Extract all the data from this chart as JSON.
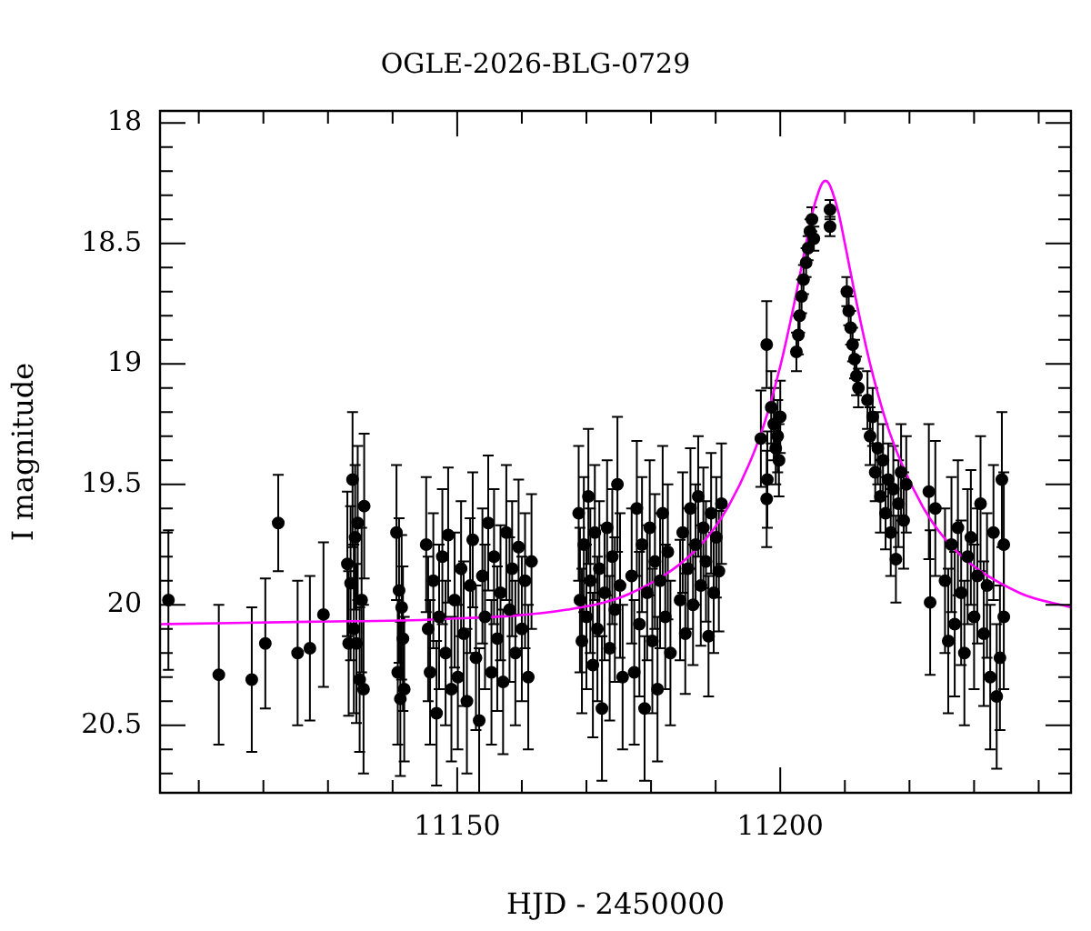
{
  "chart_data": {
    "type": "scatter",
    "title": "OGLE-2026-BLG-0729",
    "xlabel": "HJD - 2450000",
    "ylabel": "I magnitude",
    "xlim": [
      11104,
      11245
    ],
    "ylim": [
      20.78,
      17.95
    ],
    "xticks": [
      {
        "value": 11110,
        "label": null
      },
      {
        "value": 11120,
        "label": null
      },
      {
        "value": 11130,
        "label": null
      },
      {
        "value": 11140,
        "label": null
      },
      11150,
      {
        "value": 11160,
        "label": null
      },
      {
        "value": 11170,
        "label": null
      },
      {
        "value": 11180,
        "label": null
      },
      {
        "value": 11190,
        "label": null
      },
      11200,
      {
        "value": 11210,
        "label": null
      },
      {
        "value": 11220,
        "label": null
      },
      {
        "value": 11230,
        "label": null
      },
      {
        "value": 11240,
        "label": null
      }
    ],
    "yticks": [
      18,
      {
        "value": 18.1,
        "label": null
      },
      {
        "value": 18.2,
        "label": null
      },
      {
        "value": 18.3,
        "label": null
      },
      {
        "value": 18.4,
        "label": null
      },
      18.5,
      {
        "value": 18.6,
        "label": null
      },
      {
        "value": 18.7,
        "label": null
      },
      {
        "value": 18.8,
        "label": null
      },
      {
        "value": 18.9,
        "label": null
      },
      19,
      {
        "value": 19.1,
        "label": null
      },
      {
        "value": 19.2,
        "label": null
      },
      {
        "value": 19.3,
        "label": null
      },
      {
        "value": 19.4,
        "label": null
      },
      19.5,
      {
        "value": 19.6,
        "label": null
      },
      {
        "value": 19.7,
        "label": null
      },
      {
        "value": 19.8,
        "label": null
      },
      {
        "value": 19.9,
        "label": null
      },
      20,
      {
        "value": 20.1,
        "label": null
      },
      {
        "value": 20.2,
        "label": null
      },
      {
        "value": 20.3,
        "label": null
      },
      {
        "value": 20.4,
        "label": null
      },
      20.5,
      {
        "value": 20.6,
        "label": null
      },
      {
        "value": 20.7,
        "label": null
      }
    ],
    "grid": false,
    "legend": false,
    "series": [
      {
        "color": "#000000",
        "marker": "circle",
        "x": [
          11105.3,
          11113.1,
          11118.2,
          11120.3,
          11122.3,
          11125.3,
          11127.2,
          11129.3,
          11133.0,
          11133.2,
          11133.5,
          11133.8,
          11134.0,
          11134.2,
          11134.4,
          11134.6,
          11134.9,
          11135.2,
          11135.5,
          11135.6,
          11140.6,
          11140.8,
          11141.0,
          11141.2,
          11141.4,
          11141.6,
          11141.8,
          11145.2,
          11145.5,
          11145.8,
          11146.3,
          11146.8,
          11147.2,
          11147.7,
          11148.2,
          11148.6,
          11149.1,
          11149.6,
          11150.1,
          11150.6,
          11151.0,
          11151.5,
          11152.0,
          11152.4,
          11152.9,
          11153.4,
          11153.9,
          11154.3,
          11154.8,
          11155.3,
          11155.7,
          11156.2,
          11156.7,
          11157.1,
          11157.6,
          11158.1,
          11158.5,
          11159.0,
          11159.5,
          11160.0,
          11160.5,
          11161.0,
          11161.5,
          11168.8,
          11169.0,
          11169.3,
          11169.6,
          11170.0,
          11170.3,
          11170.6,
          11171.0,
          11171.3,
          11171.7,
          11172.0,
          11172.4,
          11172.8,
          11173.2,
          11173.6,
          11174.0,
          11174.4,
          11174.8,
          11175.2,
          11175.6,
          11177.0,
          11177.4,
          11177.8,
          11178.2,
          11178.6,
          11179.0,
          11179.4,
          11179.8,
          11180.2,
          11180.6,
          11181.0,
          11181.4,
          11181.8,
          11182.2,
          11182.6,
          11183.0,
          11184.5,
          11184.9,
          11185.3,
          11185.7,
          11186.1,
          11186.5,
          11186.9,
          11187.3,
          11187.7,
          11188.1,
          11188.5,
          11188.9,
          11189.3,
          11189.7,
          11190.1,
          11190.5,
          11190.9,
          11197.0,
          11197.9,
          11197.9,
          11198.0,
          11198.6,
          11199.0,
          11199.3,
          11199.6,
          11199.8,
          11200.0,
          11202.5,
          11202.8,
          11203.0,
          11203.3,
          11203.6,
          11204.0,
          11204.3,
          11204.6,
          11204.9,
          11205.2,
          11207.7,
          11207.7,
          11210.3,
          11210.6,
          11210.9,
          11211.2,
          11211.5,
          11211.8,
          11212.1,
          11213.5,
          11213.9,
          11214.3,
          11214.7,
          11215.1,
          11215.5,
          11215.9,
          11216.3,
          11216.7,
          11217.1,
          11217.5,
          11217.9,
          11218.3,
          11218.7,
          11219.1,
          11219.5,
          11223.0,
          11223.2,
          11224.0,
          11225.5,
          11226.0,
          11226.5,
          11227.0,
          11227.5,
          11228.0,
          11228.5,
          11229.0,
          11229.5,
          11230.0,
          11230.5,
          11231.0,
          11231.5,
          11232.0,
          11232.5,
          11233.0,
          11233.5,
          11234.0,
          11234.3,
          11234.6,
          11234.6
        ],
        "values": [
          19.98,
          20.29,
          20.31,
          20.16,
          19.66,
          20.2,
          20.18,
          20.04,
          19.83,
          20.16,
          19.91,
          19.48,
          20.1,
          19.72,
          20.16,
          19.66,
          20.31,
          19.98,
          20.35,
          19.59,
          19.7,
          20.28,
          19.94,
          20.39,
          20.01,
          20.14,
          20.35,
          19.75,
          20.1,
          20.28,
          19.9,
          20.45,
          20.05,
          19.8,
          20.2,
          19.71,
          20.35,
          19.98,
          20.3,
          19.85,
          20.12,
          20.4,
          19.92,
          19.73,
          20.22,
          20.48,
          19.88,
          20.05,
          19.66,
          20.28,
          19.8,
          20.14,
          19.95,
          20.32,
          19.7,
          20.02,
          19.85,
          20.2,
          19.76,
          20.1,
          19.9,
          20.3,
          19.82,
          19.62,
          19.98,
          20.15,
          19.75,
          20.05,
          19.55,
          19.9,
          20.25,
          19.7,
          20.1,
          19.85,
          20.43,
          19.95,
          19.68,
          20.18,
          19.8,
          20.02,
          19.5,
          19.92,
          20.3,
          19.88,
          20.28,
          19.6,
          20.08,
          19.75,
          20.43,
          19.95,
          19.68,
          20.15,
          19.82,
          20.35,
          19.9,
          19.62,
          20.05,
          19.78,
          20.2,
          19.98,
          19.7,
          20.12,
          19.85,
          19.6,
          20.0,
          19.75,
          19.55,
          19.92,
          19.68,
          19.82,
          20.13,
          19.62,
          19.95,
          19.72,
          19.86,
          19.58,
          19.31,
          18.92,
          19.56,
          19.48,
          19.18,
          19.25,
          19.35,
          19.3,
          19.4,
          19.22,
          18.95,
          18.88,
          18.8,
          18.72,
          18.65,
          18.58,
          18.52,
          18.45,
          18.4,
          18.48,
          18.36,
          18.43,
          18.7,
          18.78,
          18.85,
          18.92,
          18.98,
          19.05,
          19.1,
          19.15,
          19.3,
          19.22,
          19.45,
          19.35,
          19.55,
          19.4,
          19.62,
          19.48,
          19.7,
          19.52,
          19.81,
          19.58,
          19.45,
          19.65,
          19.5,
          19.53,
          19.99,
          19.6,
          19.9,
          20.15,
          19.75,
          20.08,
          19.68,
          19.95,
          20.2,
          19.8,
          19.72,
          20.05,
          19.88,
          19.58,
          20.12,
          19.92,
          20.3,
          19.7,
          20.38,
          20.22,
          19.48,
          19.75,
          20.05
        ],
        "errors": [
          0.29,
          0.29,
          0.3,
          0.27,
          0.2,
          0.3,
          0.3,
          0.3,
          0.3,
          0.3,
          0.32,
          0.28,
          0.35,
          0.3,
          0.33,
          0.32,
          0.3,
          0.3,
          0.35,
          0.3,
          0.28,
          0.3,
          0.3,
          0.32,
          0.3,
          0.3,
          0.3,
          0.28,
          0.3,
          0.3,
          0.28,
          0.3,
          0.3,
          0.28,
          0.3,
          0.28,
          0.3,
          0.28,
          0.3,
          0.28,
          0.3,
          0.3,
          0.28,
          0.28,
          0.3,
          0.3,
          0.28,
          0.3,
          0.28,
          0.3,
          0.28,
          0.3,
          0.28,
          0.3,
          0.28,
          0.3,
          0.28,
          0.3,
          0.28,
          0.3,
          0.28,
          0.3,
          0.28,
          0.28,
          0.3,
          0.3,
          0.28,
          0.3,
          0.28,
          0.3,
          0.3,
          0.28,
          0.3,
          0.28,
          0.3,
          0.28,
          0.28,
          0.3,
          0.28,
          0.3,
          0.28,
          0.3,
          0.3,
          0.28,
          0.3,
          0.28,
          0.3,
          0.28,
          0.3,
          0.28,
          0.28,
          0.3,
          0.28,
          0.3,
          0.28,
          0.28,
          0.3,
          0.28,
          0.3,
          0.25,
          0.25,
          0.25,
          0.25,
          0.25,
          0.25,
          0.25,
          0.25,
          0.25,
          0.25,
          0.25,
          0.25,
          0.25,
          0.25,
          0.25,
          0.25,
          0.25,
          0.2,
          0.18,
          0.2,
          0.2,
          0.15,
          0.15,
          0.15,
          0.15,
          0.15,
          0.15,
          0.08,
          0.08,
          0.07,
          0.07,
          0.06,
          0.06,
          0.05,
          0.05,
          0.05,
          0.05,
          0.04,
          0.04,
          0.06,
          0.06,
          0.07,
          0.07,
          0.08,
          0.08,
          0.08,
          0.12,
          0.12,
          0.12,
          0.12,
          0.15,
          0.15,
          0.15,
          0.15,
          0.15,
          0.18,
          0.18,
          0.18,
          0.18,
          0.2,
          0.2,
          0.2,
          0.28,
          0.3,
          0.28,
          0.3,
          0.3,
          0.28,
          0.3,
          0.28,
          0.3,
          0.3,
          0.28,
          0.28,
          0.3,
          0.28,
          0.28,
          0.3,
          0.3,
          0.3,
          0.28,
          0.3,
          0.3,
          0.28,
          0.3,
          0.3
        ]
      },
      {
        "type": "line",
        "color": "#ff00ff",
        "x": [
          11104,
          11127,
          11147,
          11167,
          11177,
          11187,
          11192,
          11197,
          11200,
          11202,
          11204,
          11205,
          11206,
          11206.5,
          11207,
          11207.5,
          11208,
          11209,
          11210,
          11212,
          11214,
          11217,
          11222,
          11227,
          11237,
          11245
        ],
        "values": [
          20.08,
          20.07,
          20.06,
          20.02,
          19.95,
          19.77,
          19.59,
          19.29,
          19.01,
          18.77,
          18.5,
          18.37,
          18.28,
          18.25,
          18.24,
          18.25,
          18.28,
          18.37,
          18.5,
          18.77,
          19.01,
          19.29,
          19.59,
          19.77,
          19.95,
          20.01
        ]
      }
    ]
  }
}
